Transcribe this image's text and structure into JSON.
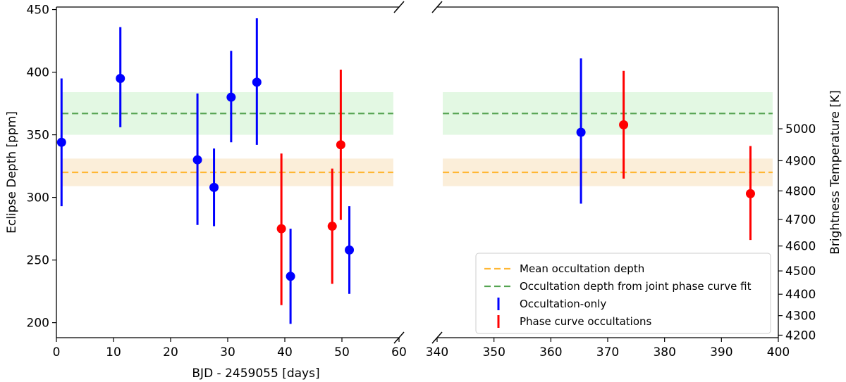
{
  "chart_data": {
    "type": "scatter",
    "xlabel": "BJD - 2459055 [days]",
    "ylabel": "Eclipse Depth [ppm]",
    "ylabel_right": "Brightness Temperature [K]",
    "ylim": [
      188,
      452
    ],
    "y_ticks": [
      200,
      250,
      300,
      350,
      400,
      450
    ],
    "panels": [
      {
        "xlim": [
          0,
          60
        ],
        "x_ticks": [
          0,
          10,
          20,
          30,
          40,
          50,
          60
        ]
      },
      {
        "xlim": [
          340,
          400
        ],
        "x_ticks": [
          340,
          350,
          360,
          370,
          380,
          390,
          400
        ]
      }
    ],
    "right_axis": {
      "ylim": [
        4200,
        5015
      ],
      "ticks": [
        4200,
        4300,
        4400,
        4500,
        4600,
        4700,
        4800,
        4900,
        5000
      ],
      "tick_ppm": [
        190,
        205.6,
        222.7,
        241.3,
        261.2,
        282.5,
        305.2,
        329.3,
        354.8
      ]
    },
    "mean_depth": {
      "value": 320,
      "band": [
        309,
        331
      ],
      "color": "#ffb734",
      "band_color": "#fbeed9"
    },
    "joint_depth": {
      "value": 367,
      "band": [
        350,
        384
      ],
      "color": "#55a452",
      "band_color": "#e3f8e3"
    },
    "series": [
      {
        "name": "Occultation-only",
        "color": "#0000ff",
        "points": [
          {
            "x": 0.9,
            "y": 344,
            "lo": 293,
            "hi": 395
          },
          {
            "x": 11.2,
            "y": 395,
            "lo": 356,
            "hi": 436
          },
          {
            "x": 24.7,
            "y": 330,
            "lo": 278,
            "hi": 383
          },
          {
            "x": 27.6,
            "y": 308,
            "lo": 277,
            "hi": 339
          },
          {
            "x": 30.6,
            "y": 380,
            "lo": 344,
            "hi": 417
          },
          {
            "x": 35.1,
            "y": 392,
            "lo": 342,
            "hi": 443
          },
          {
            "x": 41.0,
            "y": 237,
            "lo": 199,
            "hi": 275
          },
          {
            "x": 51.3,
            "y": 258,
            "lo": 223,
            "hi": 293
          },
          {
            "x": 365.3,
            "y": 352,
            "lo": 295,
            "hi": 411
          }
        ]
      },
      {
        "name": "Phase curve occultations",
        "color": "#ff0000",
        "points": [
          {
            "x": 39.4,
            "y": 275,
            "lo": 214,
            "hi": 335
          },
          {
            "x": 48.3,
            "y": 277,
            "lo": 231,
            "hi": 323
          },
          {
            "x": 49.8,
            "y": 342,
            "lo": 282,
            "hi": 402
          },
          {
            "x": 372.8,
            "y": 358,
            "lo": 315,
            "hi": 401
          },
          {
            "x": 395.1,
            "y": 303,
            "lo": 266,
            "hi": 341
          }
        ]
      }
    ],
    "legend": {
      "position": "bottom-right",
      "entries": [
        {
          "label": "Mean occultation depth",
          "kind": "dashed",
          "color": "#ffb734"
        },
        {
          "label": "Occultation depth from joint phase curve fit",
          "kind": "dashed",
          "color": "#55a452"
        },
        {
          "label": "Occultation-only",
          "kind": "errorbar",
          "color": "#0000ff"
        },
        {
          "label": "Phase curve occultations",
          "kind": "errorbar",
          "color": "#ff0000"
        }
      ]
    }
  }
}
